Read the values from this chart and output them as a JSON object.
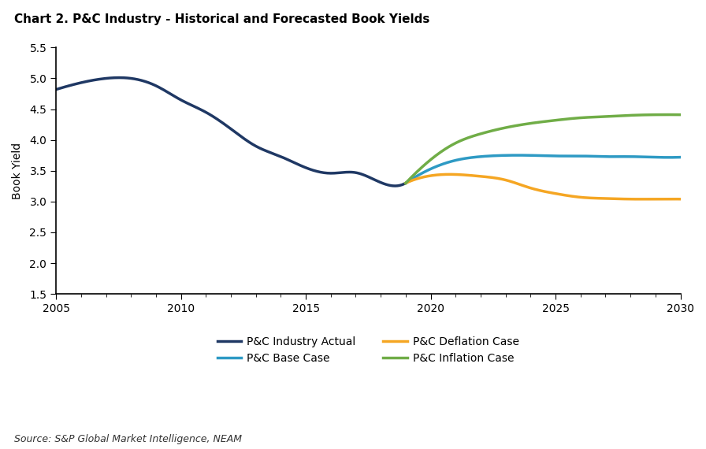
{
  "title": "Chart 2. P&C Industry - Historical and Forecasted Book Yields",
  "ylabel": "Book Yield",
  "source": "Source: S&P Global Market Intelligence, NEAM",
  "ylim": [
    1.5,
    5.5
  ],
  "yticks": [
    1.5,
    2.0,
    2.5,
    3.0,
    3.5,
    4.0,
    4.5,
    5.0,
    5.5
  ],
  "xticks": [
    2005,
    2010,
    2015,
    2020,
    2025,
    2030
  ],
  "xlim": [
    2005,
    2030
  ],
  "actual_x": [
    2005,
    2006,
    2007,
    2008,
    2009,
    2010,
    2011,
    2012,
    2013,
    2014,
    2015,
    2016,
    2017,
    2018,
    2019
  ],
  "actual_y": [
    4.82,
    4.93,
    5.0,
    5.0,
    4.88,
    4.65,
    4.45,
    4.18,
    3.9,
    3.73,
    3.55,
    3.46,
    3.47,
    3.31,
    3.3
  ],
  "actual_color": "#1f3864",
  "actual_label": "P&C Industry Actual",
  "base_x": [
    2019,
    2020,
    2021,
    2022,
    2023,
    2024,
    2025,
    2026,
    2027,
    2028,
    2029,
    2030
  ],
  "base_y": [
    3.3,
    3.53,
    3.67,
    3.73,
    3.75,
    3.75,
    3.74,
    3.74,
    3.73,
    3.73,
    3.72,
    3.72
  ],
  "base_color": "#2e9ac4",
  "base_label": "P&C Base Case",
  "deflation_x": [
    2019,
    2020,
    2021,
    2022,
    2023,
    2024,
    2025,
    2026,
    2027,
    2028,
    2029,
    2030
  ],
  "deflation_y": [
    3.3,
    3.42,
    3.44,
    3.41,
    3.35,
    3.22,
    3.13,
    3.07,
    3.05,
    3.04,
    3.04,
    3.04
  ],
  "deflation_color": "#f5a623",
  "deflation_label": "P&C Deflation Case",
  "inflation_x": [
    2019,
    2020,
    2021,
    2022,
    2023,
    2024,
    2025,
    2026,
    2027,
    2028,
    2029,
    2030
  ],
  "inflation_y": [
    3.3,
    3.68,
    3.95,
    4.1,
    4.2,
    4.27,
    4.32,
    4.36,
    4.38,
    4.4,
    4.41,
    4.41
  ],
  "inflation_color": "#70ad47",
  "inflation_label": "P&C Inflation Case",
  "background_color": "#ffffff",
  "title_fontsize": 11,
  "axis_label_fontsize": 10,
  "tick_fontsize": 10,
  "source_fontsize": 9,
  "legend_fontsize": 10,
  "line_width": 2.5
}
